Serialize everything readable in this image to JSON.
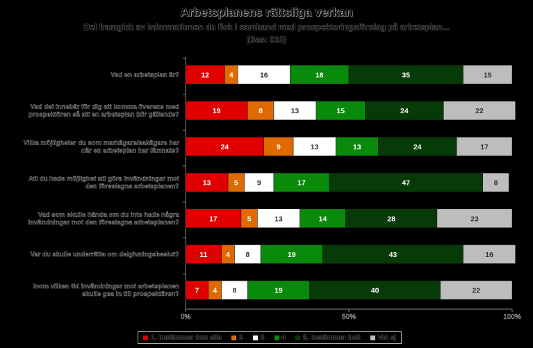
{
  "header": {
    "title": "Arbetsplanens rättsliga verkan",
    "subtitle": "Del framgick av informationen du fick i samband med prospekteringsförslag på arbetsplan...",
    "base": "(Bas: 510)"
  },
  "chart_data": {
    "type": "bar",
    "stacked": true,
    "orientation": "horizontal",
    "xlim": [
      0,
      100
    ],
    "x_ticks": [
      "0%",
      "50%",
      "100%"
    ],
    "categories": [
      "Vad en arbetsplan är?",
      "Vad det innebär för dig att komma överens med prospektören så att en arbetsplan blir gällande?",
      "Vilka möjligheter du som markägare/sakägare har när en arbetsplan har lämnats?",
      "Att du hade möjlighet att göra invändningar mot den föreslagna arbetsplanen?",
      "Vad som skulle hända om du inte hade några invändningar mot den föreslagna arbetsplanen?",
      "Var du skulle underrätta om delgivningsbeslut?",
      "Inom vilken tid invändningar mot arbetsplanen skulle ges in till prospektören?"
    ],
    "series": [
      {
        "name": "1. Instämmer inte alls",
        "color": "#e00000",
        "values": [
          12,
          19,
          24,
          13,
          17,
          11,
          7
        ]
      },
      {
        "name": "2",
        "color": "#e06a00",
        "values": [
          4,
          8,
          9,
          5,
          5,
          4,
          4
        ]
      },
      {
        "name": "3",
        "color": "#ffffff",
        "values": [
          16,
          13,
          13,
          9,
          13,
          8,
          8
        ]
      },
      {
        "name": "4",
        "color": "#0a8a0a",
        "values": [
          18,
          15,
          13,
          17,
          14,
          19,
          19
        ]
      },
      {
        "name": "5. Instämmer helt",
        "color": "#063a06",
        "values": [
          35,
          24,
          24,
          47,
          28,
          43,
          40
        ]
      },
      {
        "name": "Vet ej",
        "color": "#bdbdbd",
        "values": [
          15,
          22,
          17,
          8,
          23,
          16,
          22
        ]
      }
    ],
    "legend": "bottom",
    "grid": false
  }
}
